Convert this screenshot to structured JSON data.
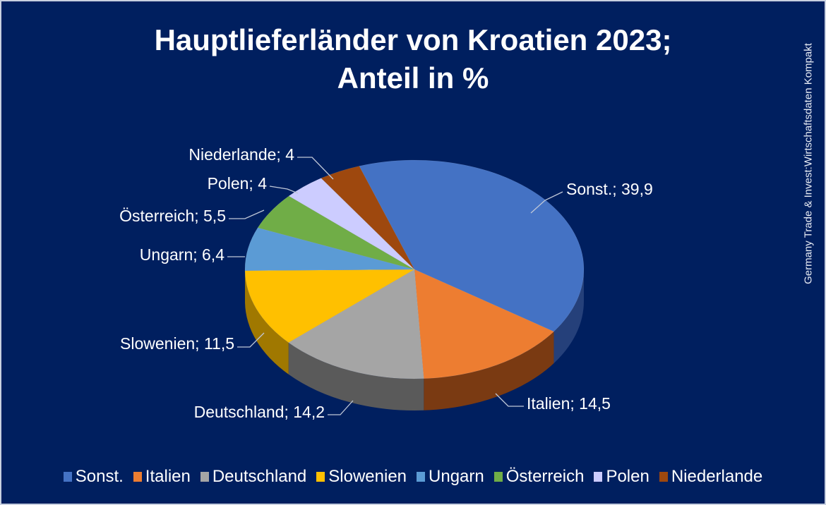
{
  "chart_data": {
    "type": "pie",
    "title_line1": "Hauptlieferländer von Kroatien 2023;",
    "title_line2": "Anteil in %",
    "source": "Germany Trade & Invest:Wirtschaftsdaten Kompakt",
    "legend_position": "bottom",
    "slices": [
      {
        "name": "Sonst.",
        "value": 39.9,
        "label": "Sonst.; 39,9",
        "color": "#4472c4",
        "side": "#25407a"
      },
      {
        "name": "Italien",
        "value": 14.5,
        "label": "Italien; 14,5",
        "color": "#ed7d31",
        "side": "#7a3a12"
      },
      {
        "name": "Deutschland",
        "value": 14.2,
        "label": "Deutschland; 14,2",
        "color": "#a5a5a5",
        "side": "#5a5a5a"
      },
      {
        "name": "Slowenien",
        "value": 11.5,
        "label": "Slowenien; 11,5",
        "color": "#ffc000",
        "side": "#a07800"
      },
      {
        "name": "Ungarn",
        "value": 6.4,
        "label": "Ungarn; 6,4",
        "color": "#5b9bd5",
        "side": "#2f5f8c"
      },
      {
        "name": "Österreich",
        "value": 5.5,
        "label": "Österreich; 5,5",
        "color": "#70ad47",
        "side": "#3f6a24"
      },
      {
        "name": "Polen",
        "value": 4,
        "label": "Polen; 4",
        "color": "#ccccff",
        "side": "#8080b0"
      },
      {
        "name": "Niederlande",
        "value": 4,
        "label": "Niederlande; 4",
        "color": "#9e480e",
        "side": "#5a2806"
      }
    ]
  }
}
